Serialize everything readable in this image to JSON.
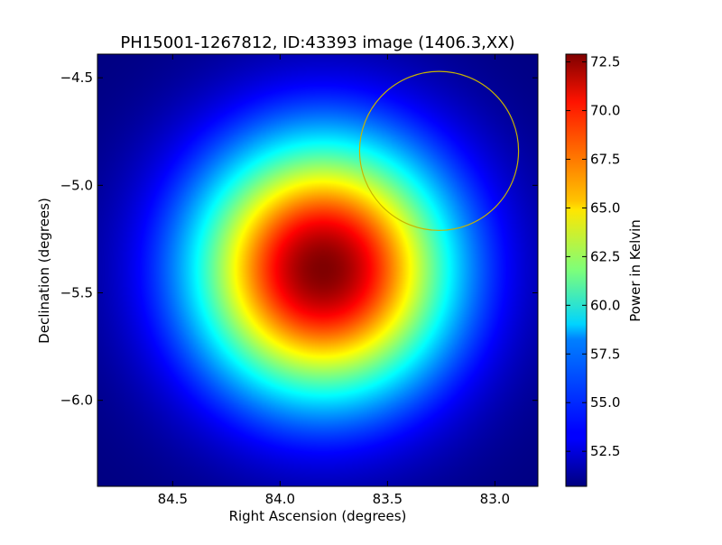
{
  "chart_data": {
    "type": "heatmap",
    "title": "PH15001-1267812, ID:43393 image (1406.3,XX)",
    "xlabel": "Right Ascension (degrees)",
    "ylabel": "Declination (degrees)",
    "colorbar_label": "Power in Kelvin",
    "colormap": "jet",
    "xlim": [
      84.85,
      82.8
    ],
    "ylim": [
      -6.4,
      -4.39
    ],
    "x_ticks": [
      84.5,
      84.0,
      83.5,
      83.0
    ],
    "x_tick_labels": [
      "84.5",
      "84.0",
      "83.5",
      "83.0"
    ],
    "y_ticks": [
      -4.5,
      -5.0,
      -5.5,
      -6.0
    ],
    "y_tick_labels": [
      "−4.5",
      "−5.0",
      "−5.5",
      "−6.0"
    ],
    "color_range": [
      50.7,
      72.9
    ],
    "colorbar_ticks": [
      52.5,
      55.0,
      57.5,
      60.0,
      62.5,
      65.0,
      67.5,
      70.0,
      72.5
    ],
    "colorbar_tick_labels": [
      "52.5",
      "55.0",
      "57.5",
      "60.0",
      "62.5",
      "65.0",
      "67.5",
      "70.0",
      "72.5"
    ],
    "peak": {
      "ra": 83.8,
      "dec": -5.39,
      "value": 72.9
    },
    "background_value": 50.7,
    "beam_sigma_deg": 0.42,
    "overlay_circle": {
      "ra": 83.26,
      "dec": -4.84,
      "radius_deg": 0.37,
      "color": "#c8b400"
    }
  }
}
